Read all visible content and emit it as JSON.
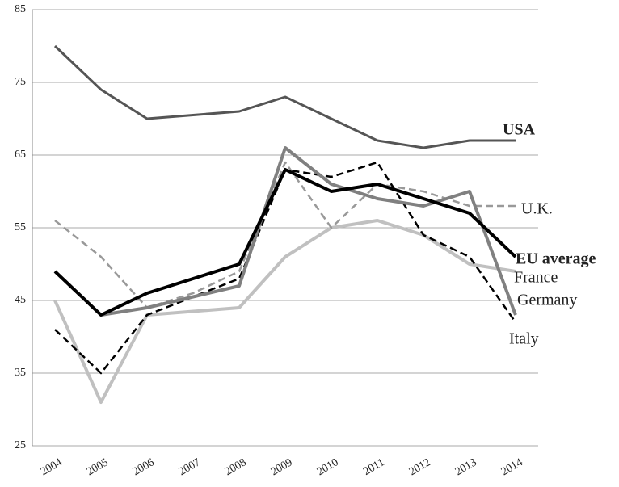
{
  "chart_data": {
    "type": "line",
    "categories": [
      "2004",
      "2005",
      "2006",
      "2007",
      "2008",
      "2009",
      "2010",
      "2011",
      "2012",
      "2013",
      "2014"
    ],
    "ylim": [
      25,
      85
    ],
    "yticks": [
      25,
      35,
      45,
      55,
      65,
      75,
      85
    ],
    "grid": true,
    "series": [
      {
        "name": "France",
        "color": "#c0c0c0",
        "dash": false,
        "bold": false,
        "values": [
          45,
          31,
          43,
          43.5,
          44,
          51,
          55,
          56,
          54,
          50,
          49
        ]
      },
      {
        "name": "U.K.",
        "color": "#999999",
        "dash": true,
        "bold": false,
        "values": [
          56,
          51,
          44,
          46,
          49,
          64,
          55,
          61,
          60,
          58,
          58
        ]
      },
      {
        "name": "Italy",
        "color": "#000000",
        "dash": true,
        "bold": false,
        "values": [
          41,
          35,
          43,
          45.5,
          48,
          63,
          62,
          64,
          54,
          51,
          42
        ]
      },
      {
        "name": "Germany",
        "color": "#808080",
        "dash": false,
        "bold": false,
        "values": [
          null,
          43,
          44,
          45.5,
          47,
          66,
          61,
          59,
          58,
          60,
          43
        ]
      },
      {
        "name": "USA",
        "color": "#555555",
        "dash": false,
        "bold": true,
        "values": [
          80,
          74,
          70,
          70.5,
          71,
          73,
          70,
          67,
          66,
          67,
          67
        ]
      },
      {
        "name": "EU average",
        "color": "#000000",
        "dash": false,
        "bold": true,
        "values": [
          49,
          43,
          46,
          48,
          50,
          63,
          60,
          61,
          59,
          57,
          51
        ]
      }
    ]
  }
}
